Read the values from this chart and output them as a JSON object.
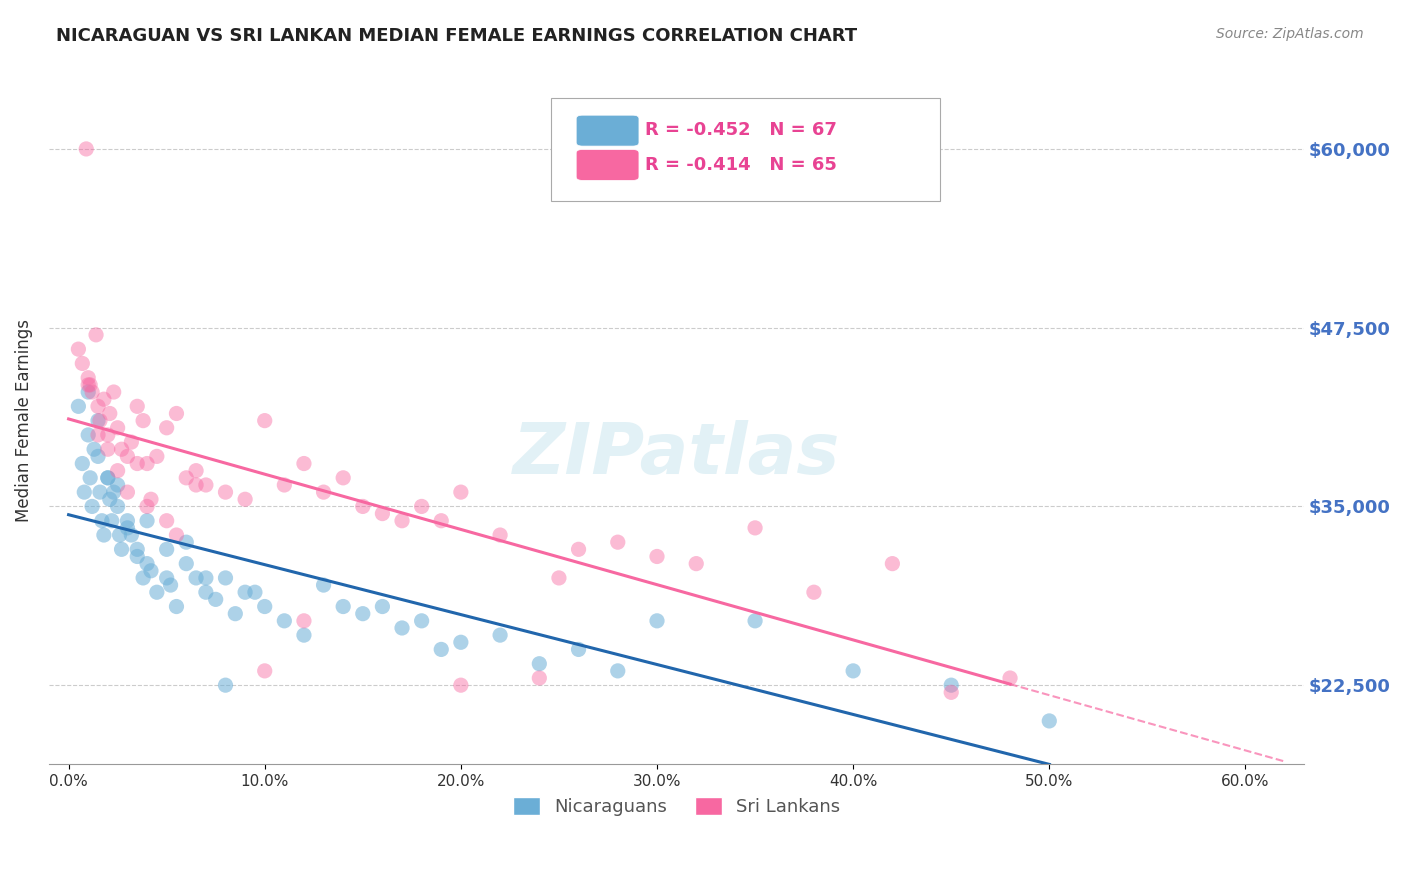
{
  "title": "NICARAGUAN VS SRI LANKAN MEDIAN FEMALE EARNINGS CORRELATION CHART",
  "source": "Source: ZipAtlas.com",
  "ylabel": "Median Female Earnings",
  "xlabel_ticks": [
    "0.0%",
    "10.0%",
    "20.0%",
    "30.0%",
    "40.0%",
    "50.0%",
    "60.0%"
  ],
  "xlabel_vals": [
    0.0,
    10.0,
    20.0,
    30.0,
    40.0,
    50.0,
    60.0
  ],
  "ytick_labels": [
    "$22,500",
    "$35,000",
    "$47,500",
    "$60,000"
  ],
  "ytick_vals": [
    22500,
    35000,
    47500,
    60000
  ],
  "ylim": [
    17000,
    65000
  ],
  "xlim": [
    -1,
    63
  ],
  "blue_color": "#6baed6",
  "pink_color": "#f768a1",
  "blue_line_color": "#2166ac",
  "pink_line_color": "#f768a1",
  "legend_blue_label": "Nicaraguans",
  "legend_pink_label": "Sri Lankans",
  "R_blue": -0.452,
  "N_blue": 67,
  "R_pink": -0.414,
  "N_pink": 65,
  "watermark": "ZIPatlas",
  "blue_scatter": {
    "x": [
      0.5,
      0.7,
      0.8,
      1.0,
      1.1,
      1.2,
      1.3,
      1.5,
      1.6,
      1.7,
      1.8,
      2.0,
      2.1,
      2.2,
      2.3,
      2.5,
      2.6,
      2.7,
      3.0,
      3.2,
      3.5,
      3.8,
      4.0,
      4.2,
      4.5,
      5.0,
      5.2,
      5.5,
      6.0,
      6.5,
      7.0,
      7.5,
      8.0,
      8.5,
      9.0,
      9.5,
      10.0,
      11.0,
      12.0,
      13.0,
      14.0,
      15.0,
      16.0,
      17.0,
      18.0,
      19.0,
      20.0,
      22.0,
      24.0,
      26.0,
      28.0,
      30.0,
      35.0,
      40.0,
      45.0,
      50.0,
      1.0,
      1.5,
      2.0,
      2.5,
      3.0,
      3.5,
      4.0,
      5.0,
      6.0,
      7.0,
      8.0
    ],
    "y": [
      42000,
      38000,
      36000,
      40000,
      37000,
      35000,
      39000,
      38500,
      36000,
      34000,
      33000,
      37000,
      35500,
      34000,
      36000,
      35000,
      33000,
      32000,
      34000,
      33000,
      32000,
      30000,
      31000,
      30500,
      29000,
      30000,
      29500,
      28000,
      31000,
      30000,
      29000,
      28500,
      30000,
      27500,
      29000,
      29000,
      28000,
      27000,
      26000,
      29500,
      28000,
      27500,
      28000,
      26500,
      27000,
      25000,
      25500,
      26000,
      24000,
      25000,
      23500,
      27000,
      27000,
      23500,
      22500,
      20000,
      43000,
      41000,
      37000,
      36500,
      33500,
      31500,
      34000,
      32000,
      32500,
      30000,
      22500
    ]
  },
  "pink_scatter": {
    "x": [
      0.5,
      0.7,
      0.9,
      1.0,
      1.1,
      1.2,
      1.4,
      1.5,
      1.6,
      1.8,
      2.0,
      2.1,
      2.3,
      2.5,
      2.7,
      3.0,
      3.2,
      3.5,
      3.8,
      4.0,
      4.5,
      5.0,
      5.5,
      6.0,
      6.5,
      7.0,
      8.0,
      9.0,
      10.0,
      11.0,
      12.0,
      13.0,
      14.0,
      15.0,
      16.0,
      17.0,
      18.0,
      19.0,
      20.0,
      22.0,
      24.0,
      26.0,
      28.0,
      30.0,
      32.0,
      35.0,
      38.0,
      42.0,
      45.0,
      48.0,
      1.0,
      1.5,
      2.0,
      2.5,
      3.0,
      4.0,
      5.0,
      3.5,
      5.5,
      6.5,
      4.2,
      10.0,
      12.0,
      20.0,
      25.0
    ],
    "y": [
      46000,
      45000,
      60000,
      44000,
      43500,
      43000,
      47000,
      42000,
      41000,
      42500,
      40000,
      41500,
      43000,
      40500,
      39000,
      38500,
      39500,
      42000,
      41000,
      38000,
      38500,
      40500,
      41500,
      37000,
      37500,
      36500,
      36000,
      35500,
      41000,
      36500,
      38000,
      36000,
      37000,
      35000,
      34500,
      34000,
      35000,
      34000,
      22500,
      33000,
      23000,
      32000,
      32500,
      31500,
      31000,
      33500,
      29000,
      31000,
      22000,
      23000,
      43500,
      40000,
      39000,
      37500,
      36000,
      35000,
      34000,
      38000,
      33000,
      36500,
      35500,
      23500,
      27000,
      36000,
      30000
    ]
  }
}
